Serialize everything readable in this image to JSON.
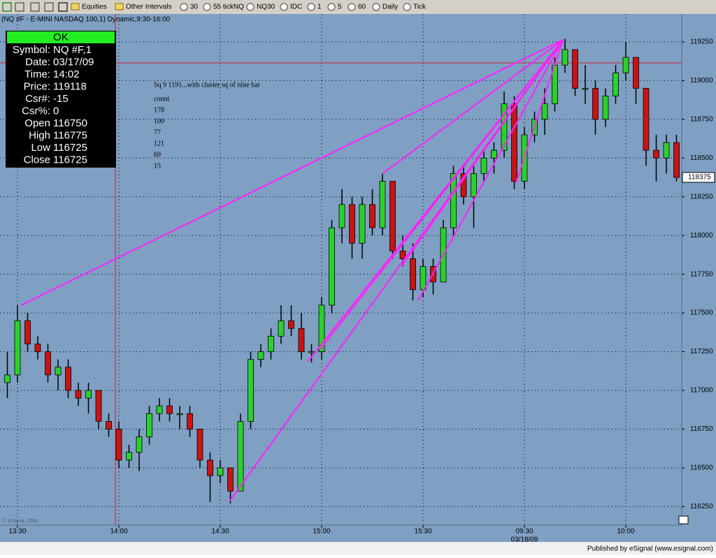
{
  "toolbar": {
    "items": [
      "Equities",
      "Other Intervals",
      "30",
      "55 tickNQ",
      "NQ30",
      "IDC",
      "1",
      "5",
      "60",
      "Daily",
      "Tick"
    ]
  },
  "chart_data": {
    "type": "candlestick",
    "title": "(NQ #F - E-MINI NASDAQ 100,1) Dynamic,9:30-16:00",
    "categories": [
      null,
      "13:30",
      null,
      null,
      null,
      null,
      null,
      null,
      null,
      null,
      null,
      "14:00",
      null,
      null,
      null,
      null,
      null,
      null,
      null,
      null,
      null,
      "14:30",
      null,
      null,
      null,
      null,
      null,
      null,
      null,
      null,
      null,
      "15:00",
      null,
      null,
      null,
      null,
      null,
      null,
      null,
      null,
      null,
      "15:30",
      null,
      null,
      null,
      null,
      null,
      null,
      null,
      null,
      null,
      "09:30",
      null,
      null,
      null,
      null,
      null,
      null,
      null,
      null,
      null,
      "10:00",
      null,
      null,
      null,
      null,
      null
    ],
    "date_label": "03/18/09",
    "open": [
      117050,
      117100,
      117450,
      117300,
      117250,
      117100,
      117150,
      117000,
      116950,
      117000,
      116800,
      116750,
      116550,
      116600,
      116700,
      116850,
      116900,
      116850,
      116850,
      116750,
      116550,
      116450,
      116500,
      116350,
      116800,
      117200,
      117250,
      117350,
      117450,
      117400,
      117250,
      117250,
      117550,
      118050,
      118200,
      117950,
      118200,
      118050,
      118350,
      117900,
      117850,
      117650,
      117800,
      117700,
      118050,
      118400,
      118250,
      118400,
      118500,
      118550,
      118850,
      118350,
      118650,
      118750,
      118850,
      119100,
      119200,
      118950,
      118950,
      118750,
      118900,
      119050,
      119150,
      118950,
      118550,
      118500,
      118600
    ],
    "high": [
      117250,
      117550,
      117500,
      117350,
      117300,
      117200,
      117200,
      117050,
      117050,
      117000,
      116850,
      116800,
      116650,
      116750,
      116900,
      116950,
      116950,
      116900,
      116900,
      116750,
      116600,
      116550,
      116500,
      116850,
      117250,
      117300,
      117400,
      117550,
      117550,
      117500,
      117300,
      117600,
      118100,
      118300,
      118250,
      118250,
      118300,
      118400,
      118350,
      118000,
      117950,
      117850,
      117850,
      118100,
      118450,
      118450,
      118450,
      118550,
      118600,
      118930,
      118900,
      118700,
      118800,
      118950,
      119150,
      119270,
      119200,
      119100,
      119000,
      118950,
      119100,
      119250,
      119150,
      118950,
      118650,
      118650,
      118650
    ],
    "low": [
      116950,
      117050,
      117250,
      117200,
      117050,
      117000,
      116950,
      116900,
      116850,
      116750,
      116700,
      116500,
      116500,
      116480,
      116650,
      116800,
      116800,
      116750,
      116700,
      116500,
      116280,
      116400,
      116270,
      116350,
      116750,
      117150,
      117200,
      117300,
      117350,
      117200,
      117180,
      117200,
      117500,
      117950,
      117850,
      117850,
      118000,
      118000,
      117850,
      117800,
      117580,
      117600,
      117620,
      117700,
      118000,
      118200,
      118050,
      118350,
      118400,
      118500,
      118300,
      118300,
      118600,
      118650,
      118800,
      119050,
      118900,
      118850,
      118650,
      118700,
      118850,
      119000,
      118850,
      118450,
      118350,
      118400,
      118350
    ],
    "close": [
      117100,
      117450,
      117300,
      117250,
      117100,
      117150,
      117000,
      116950,
      117000,
      116800,
      116750,
      116550,
      116600,
      116700,
      116850,
      116900,
      116850,
      116850,
      116750,
      116550,
      116450,
      116500,
      116350,
      116800,
      117200,
      117250,
      117350,
      117450,
      117400,
      117250,
      117250,
      117550,
      118050,
      118200,
      117950,
      118200,
      118050,
      118350,
      117900,
      117850,
      117650,
      117800,
      117700,
      118050,
      118400,
      118250,
      118400,
      118500,
      118550,
      118850,
      118350,
      118650,
      118750,
      118850,
      119100,
      119200,
      118950,
      118950,
      118750,
      118900,
      119050,
      119150,
      118950,
      118550,
      118500,
      118600,
      118375
    ],
    "up_color": "#2bd12b",
    "down_color": "#c81414",
    "ylim": [
      116130,
      119430
    ],
    "yticks": [
      116250,
      116500,
      116750,
      117000,
      117250,
      117500,
      117750,
      118000,
      118250,
      118500,
      118750,
      119000,
      119250
    ],
    "grid": true,
    "last_price": 118375,
    "annotation": {
      "title": "Sq 9 1191...with cluster sq of nine bar",
      "label": "count",
      "counts": [
        178,
        100,
        77,
        121,
        69,
        15
      ]
    },
    "watermark": "© eSignal, 2009"
  },
  "info_panel": {
    "status": "OK",
    "rows": [
      [
        "Symbol:",
        "NQ #F,1"
      ],
      [
        "Date:",
        "03/17/09"
      ],
      [
        "Time:",
        "14:02"
      ],
      [
        "Price:",
        "119118"
      ],
      [
        "Csr#:",
        "-15"
      ],
      [
        "Csr%:",
        "0"
      ],
      [
        "Open",
        "116750"
      ],
      [
        "High",
        "116775"
      ],
      [
        "Low",
        "116725"
      ],
      [
        "Close",
        "116725"
      ]
    ]
  },
  "footer": "Published by eSignal (www.esignal.com)"
}
